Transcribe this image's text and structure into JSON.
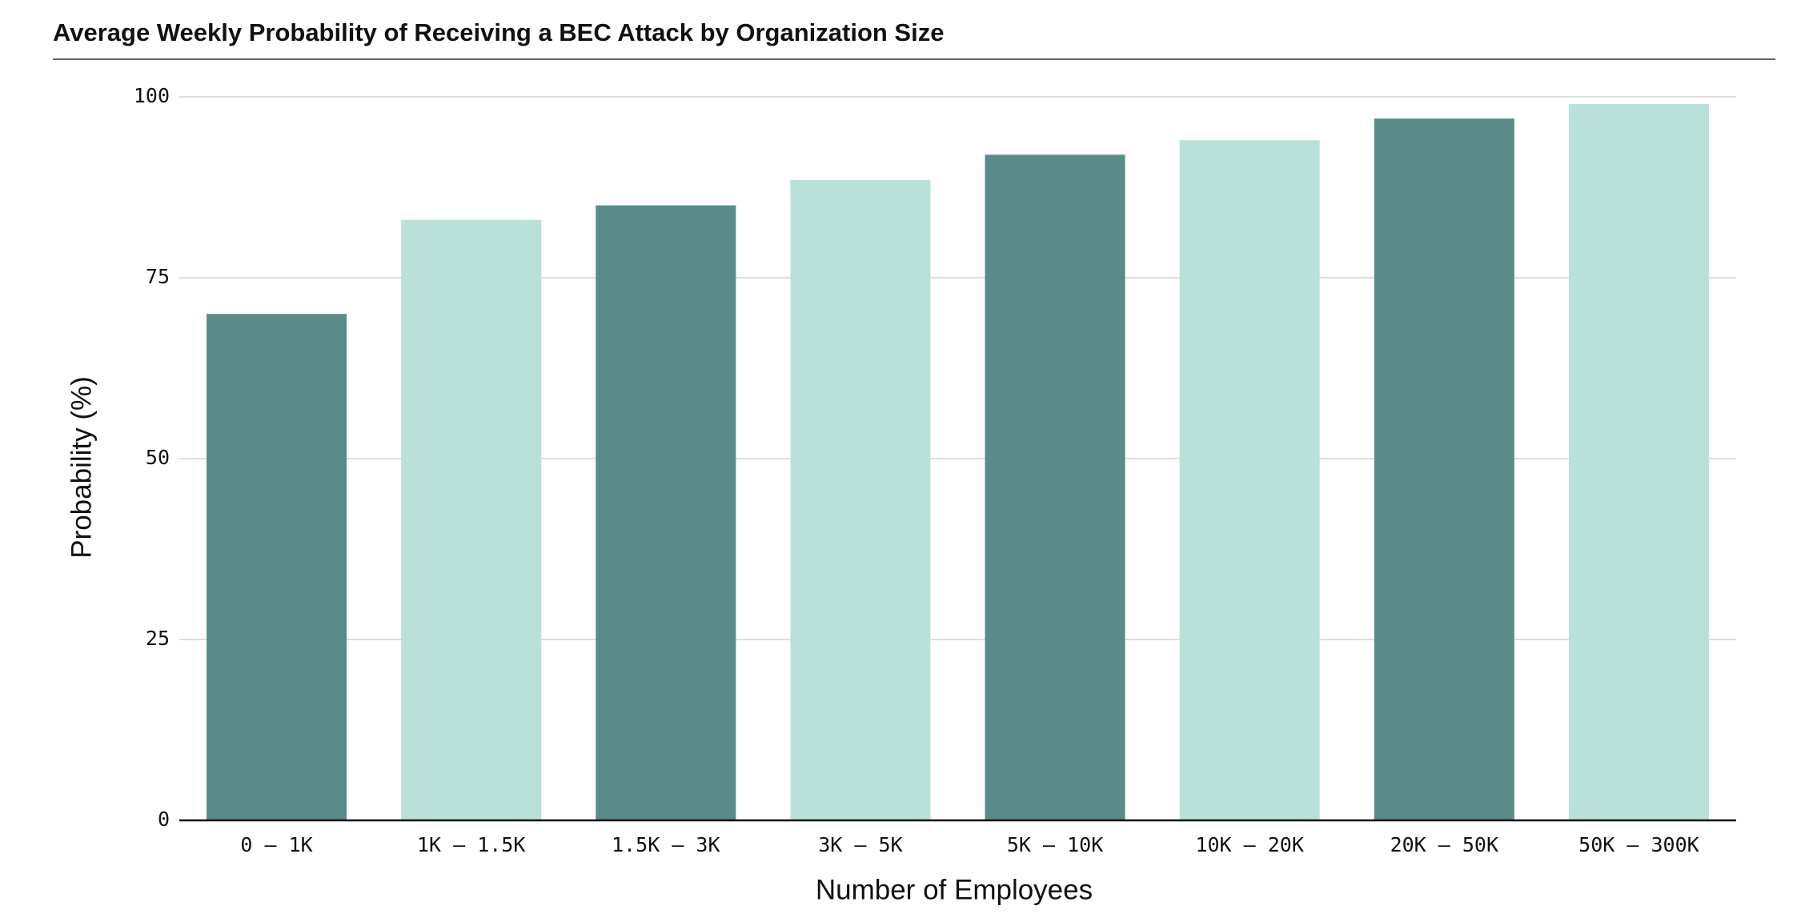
{
  "chart_data": {
    "type": "bar",
    "title": "Average Weekly Probability of Receiving a BEC Attack by Organization Size",
    "x_label": "Number of Employees",
    "y_label": "Probability (%)",
    "categories": [
      "0 – 1K",
      "1K – 1.5K",
      "1.5K – 3K",
      "3K – 5K",
      "5K – 10K",
      "10K – 20K",
      "20K – 50K",
      "50K – 300K"
    ],
    "values": [
      70,
      83,
      85,
      88.5,
      92,
      94,
      97,
      99
    ],
    "colors": [
      "#5a8b88",
      "#bae1d9",
      "#5a8b88",
      "#bae1d9",
      "#5a8b88",
      "#bae1d9",
      "#5a8b88",
      "#bae1d9"
    ],
    "ylim": [
      0,
      100
    ],
    "yticks": [
      0,
      25,
      50,
      75,
      100
    ],
    "grid": true
  }
}
